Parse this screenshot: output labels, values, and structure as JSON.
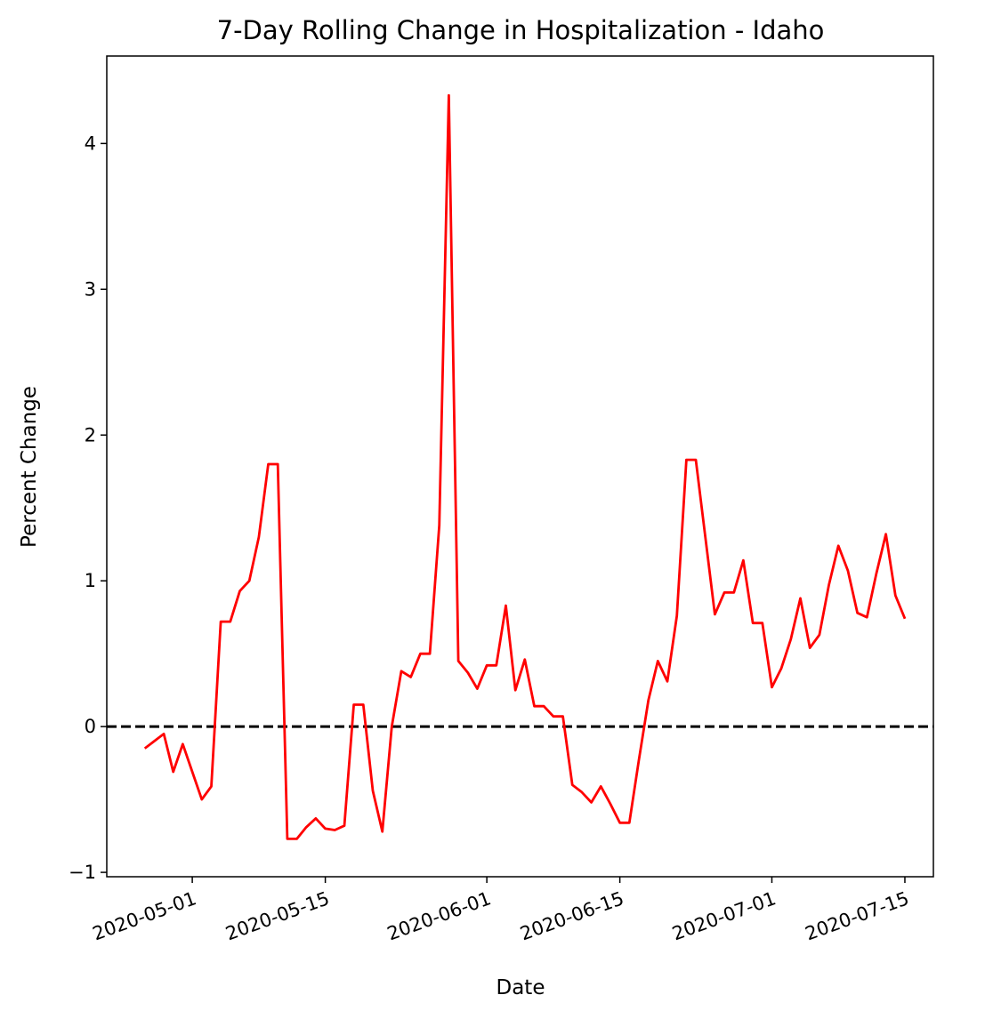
{
  "chart_data": {
    "type": "line",
    "title": "7-Day Rolling Change in Hospitalization - Idaho",
    "xlabel": "Date",
    "ylabel": "Percent Change",
    "xlim": [
      "2020-04-22",
      "2020-07-18"
    ],
    "ylim": [
      -1.03,
      4.6
    ],
    "x_ticks": [
      "2020-05-01",
      "2020-05-15",
      "2020-06-01",
      "2020-06-15",
      "2020-07-01",
      "2020-07-15"
    ],
    "y_ticks": [
      -1,
      0,
      1,
      2,
      3,
      4
    ],
    "y_tick_labels": [
      "−1",
      "0",
      "1",
      "2",
      "3",
      "4"
    ],
    "grid": false,
    "reference_line": {
      "y": 0,
      "style": "dashed",
      "color": "#000000"
    },
    "series": [
      {
        "color": "#ff0000",
        "x": [
          "2020-04-26",
          "2020-04-27",
          "2020-04-28",
          "2020-04-29",
          "2020-04-30",
          "2020-05-01",
          "2020-05-02",
          "2020-05-03",
          "2020-05-04",
          "2020-05-05",
          "2020-05-06",
          "2020-05-07",
          "2020-05-08",
          "2020-05-09",
          "2020-05-10",
          "2020-05-11",
          "2020-05-12",
          "2020-05-13",
          "2020-05-14",
          "2020-05-15",
          "2020-05-16",
          "2020-05-17",
          "2020-05-18",
          "2020-05-19",
          "2020-05-20",
          "2020-05-21",
          "2020-05-22",
          "2020-05-23",
          "2020-05-24",
          "2020-05-25",
          "2020-05-26",
          "2020-05-27",
          "2020-05-28",
          "2020-05-29",
          "2020-05-30",
          "2020-05-31",
          "2020-06-01",
          "2020-06-02",
          "2020-06-03",
          "2020-06-04",
          "2020-06-05",
          "2020-06-06",
          "2020-06-07",
          "2020-06-08",
          "2020-06-09",
          "2020-06-10",
          "2020-06-11",
          "2020-06-12",
          "2020-06-13",
          "2020-06-14",
          "2020-06-15",
          "2020-06-16",
          "2020-06-17",
          "2020-06-18",
          "2020-06-19",
          "2020-06-20",
          "2020-06-21",
          "2020-06-22",
          "2020-06-23",
          "2020-06-24",
          "2020-06-25",
          "2020-06-26",
          "2020-06-27",
          "2020-06-28",
          "2020-06-29",
          "2020-06-30",
          "2020-07-01",
          "2020-07-02",
          "2020-07-03",
          "2020-07-04",
          "2020-07-05",
          "2020-07-06",
          "2020-07-07",
          "2020-07-08",
          "2020-07-09",
          "2020-07-10",
          "2020-07-11",
          "2020-07-12",
          "2020-07-13",
          "2020-07-14",
          "2020-07-15"
        ],
        "y": [
          -0.15,
          -0.1,
          -0.05,
          -0.31,
          -0.12,
          -0.31,
          -0.5,
          -0.41,
          0.72,
          0.72,
          0.93,
          1.0,
          1.3,
          1.8,
          1.8,
          -0.77,
          -0.77,
          -0.69,
          -0.63,
          -0.7,
          -0.71,
          -0.68,
          0.15,
          0.15,
          -0.44,
          -0.72,
          0.0,
          0.38,
          0.34,
          0.5,
          0.5,
          1.38,
          4.33,
          0.45,
          0.37,
          0.26,
          0.42,
          0.42,
          0.83,
          0.25,
          0.46,
          0.14,
          0.14,
          0.07,
          0.07,
          -0.4,
          -0.45,
          -0.52,
          -0.41,
          -0.53,
          -0.66,
          -0.66,
          -0.23,
          0.18,
          0.45,
          0.31,
          0.76,
          1.83,
          1.83,
          1.3,
          0.77,
          0.92,
          0.92,
          1.14,
          0.71,
          0.71,
          0.27,
          0.4,
          0.6,
          0.88,
          0.54,
          0.63,
          0.97,
          1.24,
          1.07,
          0.78,
          0.75,
          1.05,
          1.32,
          0.9,
          0.74
        ]
      }
    ]
  }
}
